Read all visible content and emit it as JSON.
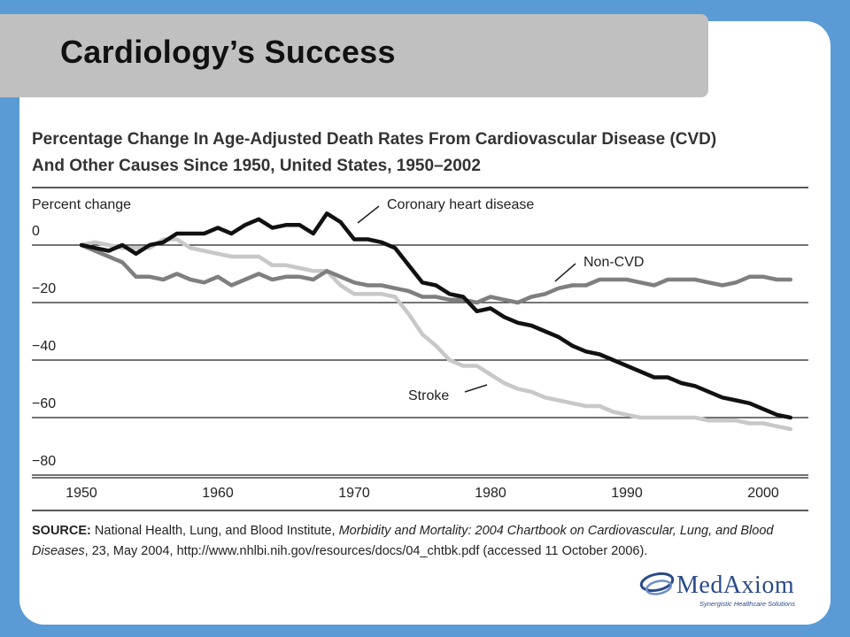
{
  "slide": {
    "title": "Cardiology’s Success"
  },
  "colors": {
    "background": "#5b9bd5",
    "title_bar": "#c0c0c0",
    "coronary": "#111111",
    "non_cvd": "#7f7f7f",
    "stroke": "#c8c8c8",
    "logo": "#2a4a8a"
  },
  "chart_data": {
    "type": "line",
    "title_line1": "Percentage Change In Age-Adjusted Death Rates From Cardiovascular Disease (CVD)",
    "title_line2": "And Other Causes Since 1950, United States, 1950–2002",
    "ylabel": "Percent change",
    "xlabel": "",
    "xlim": [
      1947,
      2004
    ],
    "ylim": [
      -83,
      12
    ],
    "x_ticks": [
      {
        "value": 1950,
        "label": "1950"
      },
      {
        "value": 1960,
        "label": "1960"
      },
      {
        "value": 1970,
        "label": "1970"
      },
      {
        "value": 1980,
        "label": "1980"
      },
      {
        "value": 1990,
        "label": "1990"
      },
      {
        "value": 2000,
        "label": "2000"
      }
    ],
    "y_ticks": [
      {
        "value": 0,
        "label": "0"
      },
      {
        "value": -20,
        "label": "−20"
      },
      {
        "value": -40,
        "label": "−40"
      },
      {
        "value": -60,
        "label": "−60"
      },
      {
        "value": -80,
        "label": "−80"
      }
    ],
    "grid": "horizontal",
    "series": [
      {
        "name": "Coronary heart disease",
        "key": "coronary",
        "x": [
          1950,
          1951,
          1952,
          1953,
          1954,
          1955,
          1956,
          1957,
          1958,
          1959,
          1960,
          1961,
          1962,
          1963,
          1964,
          1965,
          1966,
          1967,
          1968,
          1969,
          1970,
          1971,
          1972,
          1973,
          1974,
          1975,
          1976,
          1977,
          1978,
          1979,
          1980,
          1981,
          1982,
          1983,
          1984,
          1985,
          1986,
          1987,
          1988,
          1989,
          1990,
          1991,
          1992,
          1993,
          1994,
          1995,
          1996,
          1997,
          1998,
          1999,
          2000,
          2001,
          2002
        ],
        "y": [
          0,
          -1,
          -2,
          0,
          -3,
          0,
          1,
          4,
          4,
          4,
          6,
          4,
          7,
          9,
          6,
          7,
          7,
          4,
          11,
          8,
          2,
          2,
          1,
          -1,
          -7,
          -13,
          -14,
          -17,
          -18,
          -23,
          -22,
          -25,
          -27,
          -28,
          -30,
          -32,
          -35,
          -37,
          -38,
          -40,
          -42,
          -44,
          -46,
          -46,
          -48,
          -49,
          -51,
          -53,
          -54,
          -55,
          -57,
          -59,
          -60
        ]
      },
      {
        "name": "Non-CVD",
        "key": "non_cvd",
        "x": [
          1950,
          1951,
          1952,
          1953,
          1954,
          1955,
          1956,
          1957,
          1958,
          1959,
          1960,
          1961,
          1962,
          1963,
          1964,
          1965,
          1966,
          1967,
          1968,
          1969,
          1970,
          1971,
          1972,
          1973,
          1974,
          1975,
          1976,
          1977,
          1978,
          1979,
          1980,
          1981,
          1982,
          1983,
          1984,
          1985,
          1986,
          1987,
          1988,
          1989,
          1990,
          1991,
          1992,
          1993,
          1994,
          1995,
          1996,
          1997,
          1998,
          1999,
          2000,
          2001,
          2002
        ],
        "y": [
          0,
          -2,
          -4,
          -6,
          -11,
          -11,
          -12,
          -10,
          -12,
          -13,
          -11,
          -14,
          -12,
          -10,
          -12,
          -11,
          -11,
          -12,
          -9,
          -11,
          -13,
          -14,
          -14,
          -15,
          -16,
          -18,
          -18,
          -19,
          -19,
          -20,
          -18,
          -19,
          -20,
          -18,
          -17,
          -15,
          -14,
          -14,
          -12,
          -12,
          -12,
          -13,
          -14,
          -12,
          -12,
          -12,
          -13,
          -14,
          -13,
          -11,
          -11,
          -12,
          -12
        ]
      },
      {
        "name": "Stroke",
        "key": "stroke",
        "x": [
          1950,
          1951,
          1952,
          1953,
          1954,
          1955,
          1956,
          1957,
          1958,
          1959,
          1960,
          1961,
          1962,
          1963,
          1964,
          1965,
          1966,
          1967,
          1968,
          1969,
          1970,
          1971,
          1972,
          1973,
          1974,
          1975,
          1976,
          1977,
          1978,
          1979,
          1980,
          1981,
          1982,
          1983,
          1984,
          1985,
          1986,
          1987,
          1988,
          1989,
          1990,
          1991,
          1992,
          1993,
          1994,
          1995,
          1996,
          1997,
          1998,
          1999,
          2000,
          2001,
          2002
        ],
        "y": [
          0,
          1,
          0,
          -1,
          -1,
          -1,
          2,
          2,
          -1,
          -2,
          -3,
          -4,
          -4,
          -4,
          -7,
          -7,
          -8,
          -9,
          -9,
          -14,
          -17,
          -17,
          -17,
          -18,
          -24,
          -31,
          -35,
          -40,
          -42,
          -42,
          -45,
          -48,
          -50,
          -51,
          -53,
          -54,
          -55,
          -56,
          -56,
          -58,
          -59,
          -60,
          -60,
          -60,
          -60,
          -60,
          -61,
          -61,
          -61,
          -62,
          -62,
          -63,
          -64
        ]
      }
    ],
    "annotations": [
      {
        "label": "Coronary heart disease",
        "series": "coronary"
      },
      {
        "label": "Non-CVD",
        "series": "non_cvd"
      },
      {
        "label": "Stroke",
        "series": "stroke"
      }
    ],
    "source_label": "SOURCE:",
    "source_text_a": " National Health, Lung, and Blood Institute, ",
    "source_italic": "Morbidity and Mortality: 2004 Chartbook on Cardiovascular, Lung, and Blood Diseases",
    "source_text_b": ", 23, May 2004, http://www.nhlbi.nih.gov/resources/docs/04_chtbk.pdf (accessed 11 October 2006)."
  },
  "logo": {
    "name": "MedAxiom",
    "tagline": "Synergistic Healthcare Solutions"
  }
}
